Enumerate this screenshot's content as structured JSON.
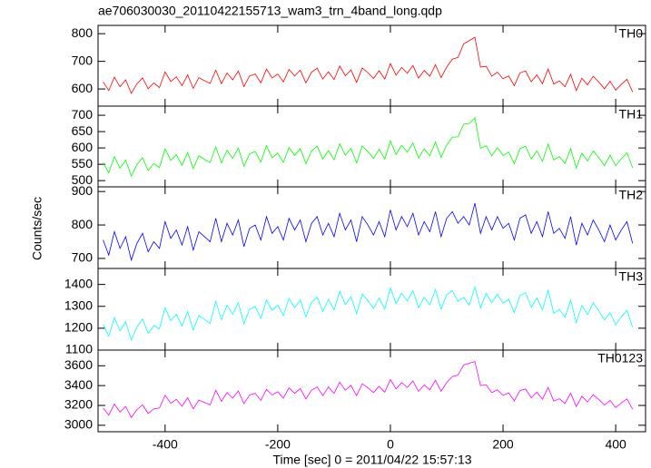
{
  "chart_data": [
    {
      "type": "line",
      "title": "ae706030030_20110422155713_wam3_trn_4band_long.qdp",
      "series": [
        {
          "name": "TH0",
          "color": "#ff0000",
          "values": [
            626,
            594,
            643,
            608,
            633,
            584,
            619,
            640,
            601,
            622,
            605,
            662,
            627,
            644,
            612,
            651,
            602,
            641,
            630,
            620,
            668,
            619,
            658,
            633,
            665,
            609,
            647,
            654,
            622,
            672,
            640,
            654,
            626,
            671,
            647,
            668,
            622,
            661,
            675,
            636,
            662,
            634,
            683,
            648,
            669,
            624,
            676,
            659,
            638,
            666,
            636,
            692,
            650,
            678,
            657,
            685,
            639,
            667,
            646,
            688,
            641,
            679,
            708,
            714,
            763,
            775,
            787,
            679,
            682,
            646,
            661,
            637,
            647,
            612,
            658,
            665,
            626,
            651,
            619,
            672,
            618,
            629,
            608,
            653,
            594,
            639,
            615,
            646,
            625,
            601,
            628,
            596,
            617,
            635,
            589
          ]
        }
      ],
      "ylim": [
        538,
        830
      ],
      "yticks": [
        600,
        700,
        800
      ]
    },
    {
      "type": "line",
      "series": [
        {
          "name": "TH1",
          "color": "#00ff00",
          "values": [
            555,
            524,
            573,
            538,
            563,
            514,
            549,
            570,
            531,
            552,
            540,
            597,
            562,
            579,
            547,
            586,
            537,
            576,
            565,
            555,
            603,
            554,
            593,
            568,
            600,
            544,
            582,
            589,
            557,
            607,
            570,
            584,
            556,
            601,
            577,
            598,
            552,
            591,
            605,
            566,
            592,
            564,
            613,
            578,
            599,
            554,
            606,
            589,
            568,
            596,
            566,
            622,
            580,
            608,
            587,
            615,
            569,
            597,
            576,
            618,
            571,
            609,
            633,
            634,
            673,
            675,
            692,
            599,
            607,
            576,
            601,
            577,
            587,
            552,
            598,
            605,
            566,
            591,
            559,
            612,
            563,
            574,
            553,
            598,
            539,
            584,
            560,
            591,
            570,
            546,
            578,
            546,
            567,
            585,
            539
          ]
        }
      ],
      "ylim": [
        481,
        728
      ],
      "yticks": [
        500,
        550,
        600,
        650,
        700
      ]
    },
    {
      "type": "line",
      "ylabel": "Counts/sec",
      "series": [
        {
          "name": "TH2",
          "color": "#0000ff",
          "values": [
            755,
            710,
            780,
            730,
            765,
            695,
            745,
            775,
            720,
            750,
            730,
            810,
            760,
            785,
            740,
            795,
            725,
            780,
            765,
            750,
            820,
            750,
            805,
            770,
            815,
            735,
            790,
            800,
            755,
            825,
            775,
            795,
            755,
            820,
            785,
            815,
            750,
            805,
            825,
            770,
            805,
            765,
            835,
            785,
            815,
            750,
            825,
            800,
            770,
            810,
            765,
            845,
            785,
            825,
            795,
            835,
            770,
            810,
            780,
            840,
            765,
            820,
            840,
            805,
            825,
            800,
            865,
            775,
            825,
            785,
            825,
            790,
            805,
            755,
            820,
            830,
            775,
            810,
            765,
            840,
            775,
            790,
            760,
            825,
            740,
            805,
            770,
            815,
            785,
            750,
            800,
            755,
            785,
            810,
            745
          ]
        }
      ],
      "ylim": [
        670,
        914
      ],
      "yticks": [
        700,
        800,
        900
      ]
    },
    {
      "type": "line",
      "series": [
        {
          "name": "TH3",
          "color": "#00ffff",
          "values": [
            1218,
            1164,
            1248,
            1188,
            1230,
            1146,
            1206,
            1242,
            1176,
            1212,
            1198,
            1294,
            1234,
            1264,
            1210,
            1276,
            1192,
            1258,
            1240,
            1222,
            1323,
            1239,
            1305,
            1263,
            1317,
            1221,
            1287,
            1299,
            1245,
            1329,
            1282,
            1306,
            1258,
            1336,
            1294,
            1330,
            1252,
            1318,
            1342,
            1276,
            1332,
            1284,
            1368,
            1308,
            1344,
            1266,
            1356,
            1326,
            1290,
            1338,
            1288,
            1384,
            1312,
            1360,
            1324,
            1372,
            1294,
            1342,
            1306,
            1378,
            1287,
            1353,
            1371,
            1323,
            1341,
            1305,
            1389,
            1293,
            1359,
            1317,
            1356,
            1314,
            1332,
            1272,
            1350,
            1362,
            1296,
            1338,
            1284,
            1374,
            1268,
            1286,
            1250,
            1328,
            1226,
            1304,
            1262,
            1316,
            1280,
            1238,
            1270,
            1216,
            1252,
            1282,
            1204
          ]
        }
      ],
      "ylim": [
        1100,
        1473
      ],
      "yticks": [
        1100,
        1200,
        1300,
        1400
      ]
    },
    {
      "type": "line",
      "xlabel": "Time [sec] 0 = 2011/04/22 15:57:13",
      "x": [
        -510,
        -500,
        -490,
        -480,
        -470,
        -460,
        -450,
        -440,
        -430,
        -420,
        -410,
        -400,
        -390,
        -380,
        -370,
        -360,
        -350,
        -340,
        -330,
        -320,
        -310,
        -300,
        -290,
        -280,
        -270,
        -260,
        -250,
        -240,
        -230,
        -220,
        -210,
        -200,
        -190,
        -180,
        -170,
        -160,
        -150,
        -140,
        -130,
        -120,
        -110,
        -100,
        -90,
        -80,
        -70,
        -60,
        -50,
        -40,
        -30,
        -20,
        -10,
        0,
        10,
        20,
        30,
        40,
        50,
        60,
        70,
        80,
        90,
        100,
        110,
        120,
        130,
        140,
        150,
        160,
        170,
        180,
        190,
        200,
        210,
        220,
        230,
        240,
        250,
        260,
        270,
        280,
        290,
        300,
        310,
        320,
        330,
        340,
        350,
        360,
        370,
        380,
        390,
        400,
        410,
        420,
        430
      ],
      "xlim": [
        -519,
        453
      ],
      "xticks": [
        -400,
        -200,
        0,
        200,
        400
      ],
      "series": [
        {
          "name": "TH0123",
          "color": "#ff00ff",
          "values": [
            3174,
            3102,
            3214,
            3134,
            3190,
            3078,
            3158,
            3206,
            3118,
            3166,
            3174,
            3302,
            3222,
            3262,
            3190,
            3278,
            3166,
            3254,
            3230,
            3206,
            3354,
            3242,
            3330,
            3274,
            3346,
            3218,
            3306,
            3322,
            3250,
            3362,
            3306,
            3338,
            3274,
            3378,
            3322,
            3370,
            3266,
            3354,
            3386,
            3298,
            3386,
            3322,
            3434,
            3354,
            3402,
            3298,
            3418,
            3378,
            3330,
            3394,
            3334,
            3462,
            3366,
            3430,
            3382,
            3446,
            3342,
            3406,
            3358,
            3454,
            3344,
            3431,
            3492,
            3506,
            3607,
            3625,
            3643,
            3401,
            3408,
            3329,
            3358,
            3302,
            3326,
            3246,
            3350,
            3366,
            3278,
            3334,
            3262,
            3382,
            3244,
            3268,
            3220,
            3324,
            3188,
            3292,
            3236,
            3308,
            3260,
            3204,
            3250,
            3178,
            3226,
            3266,
            3162
          ]
        }
      ],
      "ylim": [
        2935,
        3758
      ],
      "yticks": [
        3000,
        3200,
        3400,
        3600
      ]
    }
  ]
}
